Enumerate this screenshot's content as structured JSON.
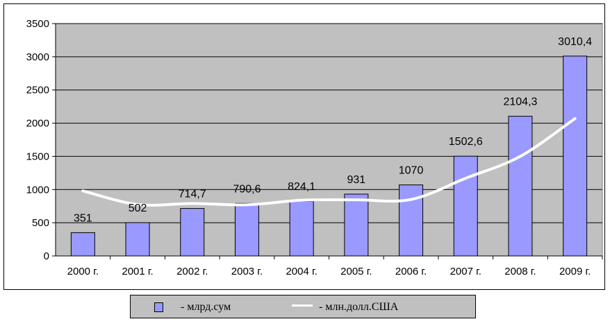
{
  "chart_data": {
    "type": "bar",
    "categories": [
      "2000 г.",
      "2001 г.",
      "2002 г.",
      "2003 г.",
      "2004 г.",
      "2005 г.",
      "2006 г.",
      "2007 г.",
      "2008 г.",
      "2009 г."
    ],
    "series": [
      {
        "name": "- млрд.сум",
        "kind": "bar",
        "values": [
          351,
          502,
          714.7,
          790.6,
          824.1,
          931,
          1070,
          1502.6,
          2104.3,
          3010.4
        ],
        "labels": [
          "351",
          "502",
          "714,7",
          "790,6",
          "824,1",
          "931",
          "1070",
          "1502,6",
          "2104,3",
          "3010,4"
        ],
        "color": "#9999ff"
      },
      {
        "name": "- млн.долл.США",
        "kind": "line",
        "values": [
          980,
          775,
          790,
          770,
          840,
          845,
          850,
          1170,
          1500,
          2070
        ],
        "color": "#ffffff"
      }
    ],
    "yticks": [
      "0",
      "500",
      "1000",
      "1500",
      "2000",
      "2500",
      "3000",
      "3500"
    ],
    "ylim": [
      0,
      3500
    ],
    "title": "",
    "xlabel": "",
    "ylabel": "",
    "grid": true,
    "plot_background": "#c0c0c0",
    "legend_position": "bottom"
  }
}
